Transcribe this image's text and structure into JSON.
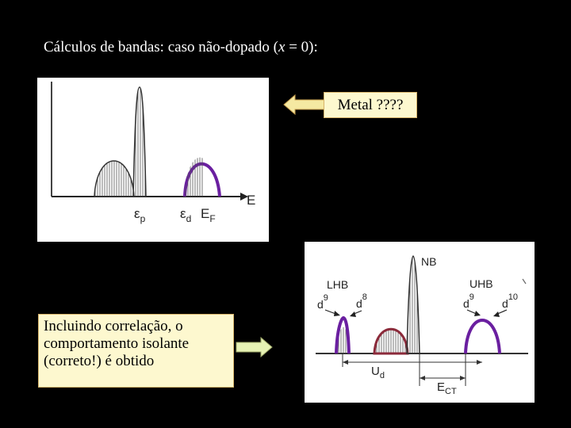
{
  "title": {
    "prefix": "Cálculos de bandas: caso não-dopado (",
    "var": "x",
    "suffix": " = 0):"
  },
  "metal_note": "Metal ????",
  "correlation_note": {
    "line1": "Incluindo correlação, o",
    "line2": "comportamento isolante",
    "line3": "(correto!) é obtido"
  },
  "top_diagram": {
    "axis_label": "E",
    "labels": {
      "ep": "ε",
      "ep_sub": "p",
      "ed": "ε",
      "ed_sub": "d",
      "ef": "E",
      "ef_sub": "F"
    }
  },
  "bottom_diagram": {
    "lhb": "LHB",
    "nb": "NB",
    "uhb": "UHB",
    "d9a": "d",
    "d9a_sup": "9",
    "d8": "d",
    "d8_sup": "8",
    "d9b": "d",
    "d9b_sup": "9",
    "d10": "d",
    "d10_sup": "10",
    "ud": "U",
    "ud_sub": "d",
    "ect": "E",
    "ect_sub": "CT"
  },
  "colors": {
    "background": "#000000",
    "note_fill": "#fdf8cf",
    "arrow_yellow": "#f5e9a2",
    "arrow_green": "#e6f2b4",
    "purple": "#6a1fa0",
    "dark_red": "#8b2a3a"
  }
}
